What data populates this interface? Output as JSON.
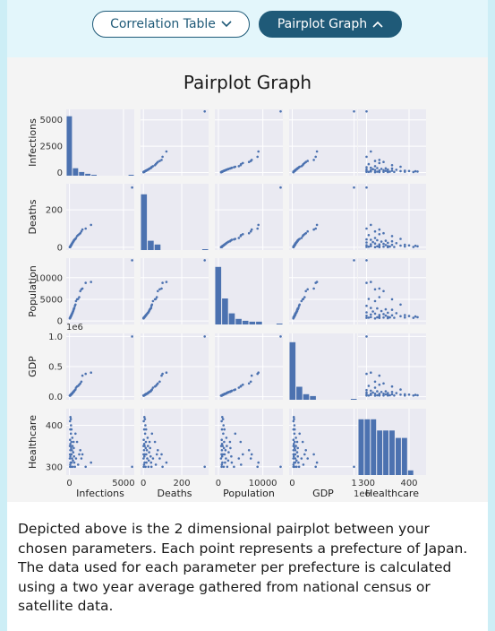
{
  "toggles": {
    "correlation_label": "Correlation Table",
    "pairplot_label": "Pairplot Graph"
  },
  "plot_title": "Pairplot Graph",
  "description": "Depicted above is the 2 dimensional pairplot between your chosen parameters. Each point represents a prefecture of Japan. The data used for each parameter per prefecture is calculated using a two year average gathered from national census or satellite data.",
  "colors": {
    "accent": "#1f5a78",
    "marker": "#4c72b0",
    "cell_bg": "#eaeaf2",
    "page_bg": "#e3f6fb"
  },
  "chart_data": {
    "type": "scatter",
    "variables": [
      "Infections",
      "Deaths",
      "Population",
      "GDP",
      "Healthcare"
    ],
    "axis_labels": [
      "Infections",
      "Deaths",
      "Population",
      "GDP",
      "Healthcare"
    ],
    "ranges": [
      [
        -300,
        6000
      ],
      [
        -15,
        340
      ],
      [
        -800,
        14500
      ],
      [
        -0.05,
        1.05
      ],
      [
        280,
        440
      ]
    ],
    "yticks": [
      {
        "values": [
          0,
          2500,
          5000
        ],
        "labels": [
          "0",
          "2500",
          "5000"
        ]
      },
      {
        "values": [
          0,
          200
        ],
        "labels": [
          "0",
          "200"
        ]
      },
      {
        "values": [
          0,
          5000,
          10000
        ],
        "labels": [
          "0",
          "5000",
          "10000"
        ]
      },
      {
        "values": [
          0.0,
          0.5,
          1.0
        ],
        "labels": [
          "0.0",
          "0.5",
          "1.0"
        ]
      },
      {
        "values": [
          300,
          400
        ],
        "labels": [
          "300",
          "400"
        ]
      }
    ],
    "xticks": [
      {
        "values": [
          0,
          5000
        ],
        "labels": [
          "0",
          "5000"
        ]
      },
      {
        "values": [
          0,
          200
        ],
        "labels": [
          "0",
          "200"
        ]
      },
      {
        "values": [
          0,
          10000
        ],
        "labels": [
          "0",
          "10000"
        ]
      },
      {
        "values": [
          0,
          1
        ],
        "labels": [
          "0",
          "1"
        ]
      },
      {
        "values": [
          300,
          400
        ],
        "labels": [
          "300",
          "400"
        ]
      }
    ],
    "offset_labels": [
      {
        "row": 3,
        "text": "1e6"
      },
      {
        "col": 3,
        "text": "1e6"
      }
    ],
    "points": {
      "Infections": [
        5800,
        2000,
        1500,
        1200,
        1100,
        1000,
        900,
        800,
        700,
        600,
        550,
        500,
        450,
        420,
        400,
        380,
        350,
        320,
        300,
        280,
        260,
        240,
        220,
        200,
        190,
        180,
        170,
        160,
        150,
        140,
        130,
        120,
        110,
        100,
        95,
        90,
        85,
        80,
        75,
        70,
        65,
        60,
        55,
        50,
        45,
        40,
        35
      ],
      "Deaths": [
        320,
        120,
        100,
        95,
        85,
        75,
        70,
        65,
        60,
        50,
        45,
        42,
        40,
        38,
        35,
        32,
        30,
        28,
        26,
        24,
        22,
        20,
        18,
        16,
        15,
        14,
        13,
        12,
        11,
        10,
        9,
        8,
        7,
        6,
        6,
        5,
        5,
        4,
        4,
        3,
        3,
        2,
        2,
        2,
        1,
        1,
        1
      ],
      "Population": [
        14000,
        9000,
        8800,
        7500,
        7300,
        6900,
        5500,
        5100,
        5000,
        4600,
        3800,
        3500,
        3000,
        2900,
        2700,
        2600,
        2300,
        2200,
        2000,
        1900,
        1800,
        1700,
        1600,
        1500,
        1400,
        1350,
        1300,
        1250,
        1200,
        1150,
        1100,
        1050,
        1000,
        950,
        900,
        880,
        860,
        840,
        820,
        800,
        780,
        760,
        740,
        720,
        700,
        650,
        580
      ],
      "GDP": [
        1.0,
        0.4,
        0.38,
        0.35,
        0.25,
        0.22,
        0.2,
        0.18,
        0.17,
        0.15,
        0.12,
        0.11,
        0.1,
        0.09,
        0.09,
        0.08,
        0.08,
        0.07,
        0.07,
        0.06,
        0.06,
        0.05,
        0.05,
        0.05,
        0.05,
        0.04,
        0.04,
        0.04,
        0.04,
        0.035,
        0.035,
        0.03,
        0.03,
        0.03,
        0.03,
        0.025,
        0.025,
        0.025,
        0.02,
        0.02,
        0.02,
        0.02,
        0.02,
        0.02,
        0.02,
        0.02,
        0.018
      ],
      "Healthcare": [
        300,
        310,
        300,
        330,
        320,
        340,
        330,
        305,
        360,
        320,
        380,
        300,
        310,
        325,
        345,
        360,
        335,
        315,
        300,
        350,
        370,
        320,
        340,
        310,
        330,
        390,
        360,
        345,
        300,
        400,
        380,
        415,
        330,
        350,
        310,
        420,
        325,
        355,
        390,
        340,
        305,
        365,
        300,
        410,
        330,
        350,
        320
      ]
    },
    "histograms": [
      [
        0.64,
        0.08,
        0.04,
        0.02,
        0.01,
        0.0,
        0.0,
        0.0,
        0.0,
        0.0,
        0.01
      ],
      [
        0.6,
        0.1,
        0.06,
        0.0,
        0.0,
        0.0,
        0.0,
        0.0,
        0.0,
        0.01
      ],
      [
        0.62,
        0.28,
        0.12,
        0.06,
        0.04,
        0.03,
        0.03,
        0.0,
        0.0,
        0.01
      ],
      [
        0.62,
        0.14,
        0.06,
        0.04,
        0.0,
        0.0,
        0.0,
        0.0,
        0.0,
        0.01
      ],
      [
        0.6,
        0.6,
        0.6,
        0.48,
        0.48,
        0.48,
        0.4,
        0.4,
        0.05,
        0.0,
        0.0
      ]
    ]
  }
}
